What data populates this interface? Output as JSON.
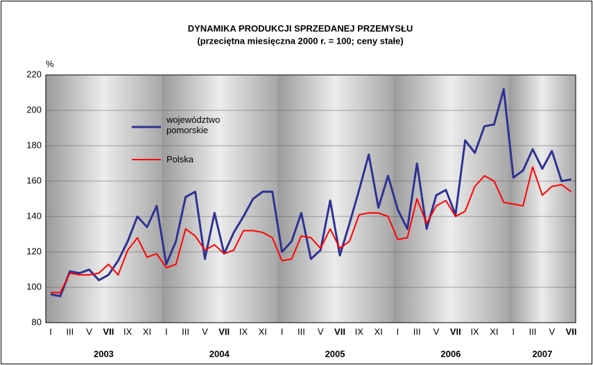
{
  "chart_data": {
    "type": "line",
    "title": "DYNAMIKA PRODUKCJI SPRZEDANEJ PRZEMYSŁU",
    "subtitle": "(przeciętna miesięczna 2000 r. = 100; ceny stałe)",
    "y_label": "%",
    "categories": [
      "I",
      null,
      "III",
      null,
      "V",
      null,
      "VII",
      null,
      "IX",
      null,
      "XI",
      null,
      "I",
      null,
      "III",
      null,
      "V",
      null,
      "VII",
      null,
      "IX",
      null,
      "XI",
      null,
      "I",
      null,
      "III",
      null,
      "V",
      null,
      "VII",
      null,
      "IX",
      null,
      "XI",
      null,
      "I",
      null,
      "III",
      null,
      "V",
      null,
      "VII",
      null,
      "IX",
      null,
      "XI",
      null,
      "I",
      null,
      "III",
      null,
      "V",
      null,
      "VII"
    ],
    "year_labels": [
      "2003",
      "2004",
      "2005",
      "2006",
      "2007"
    ],
    "series": [
      {
        "name": "województwo pomorskie",
        "color": "#2e3192",
        "values": [
          96,
          95,
          109,
          108,
          110,
          104,
          107,
          115,
          126,
          140,
          134,
          146,
          113,
          126,
          151,
          154,
          116,
          142,
          119,
          131,
          140,
          150,
          154,
          154,
          120,
          126,
          142,
          116,
          121,
          149,
          118,
          136,
          155,
          175,
          145,
          163,
          144,
          133,
          170,
          133,
          152,
          155,
          141,
          183,
          176,
          191,
          192,
          212,
          162,
          166,
          178,
          167,
          177,
          160,
          161
        ]
      },
      {
        "name": "Polska",
        "color": "#ff0000",
        "values": [
          97,
          97,
          108,
          107,
          107,
          108,
          113,
          107,
          121,
          128,
          117,
          119,
          111,
          113,
          133,
          129,
          121,
          124,
          119,
          121,
          132,
          132,
          131,
          128,
          115,
          116,
          129,
          128,
          122,
          133,
          122,
          126,
          141,
          142,
          142,
          140,
          127,
          128,
          150,
          136,
          146,
          149,
          140,
          143,
          157,
          163,
          160,
          148,
          147,
          146,
          168,
          152,
          157,
          158,
          154
        ]
      }
    ],
    "ylim": [
      80,
      220
    ],
    "yticks": [
      80,
      100,
      120,
      140,
      160,
      180,
      200,
      220
    ],
    "grid": true
  }
}
